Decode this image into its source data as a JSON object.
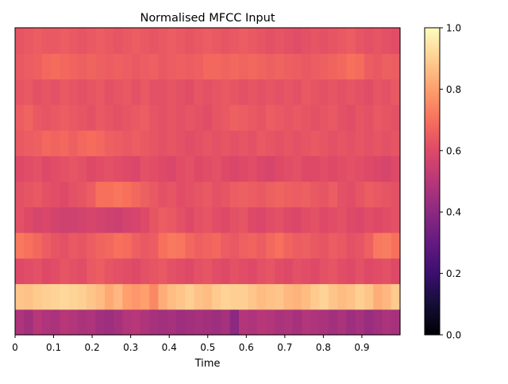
{
  "chart_data": {
    "type": "heatmap",
    "title": "Normalised MFCC Input",
    "xlabel": "Time",
    "ylabel": "",
    "colormap": "magma",
    "x_ticks": [
      "0",
      "0.1",
      "0.2",
      "0.3",
      "0.4",
      "0.5",
      "0.6",
      "0.7",
      "0.8",
      "0.9"
    ],
    "x_tick_values": [
      0,
      0.1,
      0.2,
      0.3,
      0.4,
      0.5,
      0.6,
      0.7,
      0.8,
      0.9
    ],
    "x_range": [
      0,
      0.999
    ],
    "n_rows": 12,
    "n_cols": 43,
    "rows_bottom_to_top": [
      [
        0.48,
        0.45,
        0.5,
        0.48,
        0.47,
        0.5,
        0.49,
        0.47,
        0.48,
        0.45,
        0.44,
        0.46,
        0.49,
        0.5,
        0.48,
        0.46,
        0.45,
        0.46,
        0.44,
        0.45,
        0.46,
        0.45,
        0.44,
        0.46,
        0.4,
        0.49,
        0.48,
        0.5,
        0.49,
        0.47,
        0.48,
        0.46,
        0.49,
        0.48,
        0.47,
        0.45,
        0.47,
        0.44,
        0.46,
        0.43,
        0.45,
        0.47,
        0.46
      ],
      [
        0.88,
        0.87,
        0.89,
        0.9,
        0.91,
        0.92,
        0.91,
        0.9,
        0.88,
        0.86,
        0.82,
        0.85,
        0.8,
        0.78,
        0.8,
        0.75,
        0.83,
        0.86,
        0.88,
        0.9,
        0.87,
        0.86,
        0.89,
        0.91,
        0.9,
        0.9,
        0.88,
        0.86,
        0.87,
        0.88,
        0.85,
        0.84,
        0.86,
        0.89,
        0.91,
        0.88,
        0.86,
        0.87,
        0.9,
        0.88,
        0.83,
        0.85,
        0.89
      ],
      [
        0.6,
        0.61,
        0.62,
        0.6,
        0.61,
        0.63,
        0.62,
        0.61,
        0.64,
        0.65,
        0.63,
        0.62,
        0.61,
        0.6,
        0.62,
        0.63,
        0.64,
        0.62,
        0.61,
        0.6,
        0.62,
        0.63,
        0.61,
        0.6,
        0.62,
        0.61,
        0.6,
        0.62,
        0.63,
        0.61,
        0.6,
        0.62,
        0.61,
        0.6,
        0.62,
        0.63,
        0.61,
        0.6,
        0.62,
        0.6,
        0.61,
        0.62,
        0.6
      ],
      [
        0.72,
        0.7,
        0.68,
        0.65,
        0.63,
        0.62,
        0.64,
        0.63,
        0.65,
        0.67,
        0.68,
        0.7,
        0.69,
        0.66,
        0.64,
        0.65,
        0.7,
        0.72,
        0.71,
        0.68,
        0.66,
        0.67,
        0.68,
        0.65,
        0.64,
        0.66,
        0.67,
        0.65,
        0.68,
        0.7,
        0.67,
        0.65,
        0.66,
        0.64,
        0.63,
        0.65,
        0.64,
        0.62,
        0.63,
        0.66,
        0.72,
        0.73,
        0.7
      ],
      [
        0.62,
        0.6,
        0.58,
        0.59,
        0.57,
        0.56,
        0.56,
        0.57,
        0.58,
        0.57,
        0.56,
        0.55,
        0.57,
        0.58,
        0.6,
        0.63,
        0.65,
        0.64,
        0.62,
        0.6,
        0.62,
        0.63,
        0.61,
        0.6,
        0.62,
        0.63,
        0.6,
        0.59,
        0.61,
        0.62,
        0.6,
        0.59,
        0.61,
        0.62,
        0.6,
        0.61,
        0.62,
        0.6,
        0.59,
        0.61,
        0.6,
        0.61,
        0.62
      ],
      [
        0.62,
        0.63,
        0.64,
        0.62,
        0.61,
        0.6,
        0.62,
        0.63,
        0.65,
        0.7,
        0.7,
        0.71,
        0.7,
        0.68,
        0.66,
        0.64,
        0.62,
        0.63,
        0.61,
        0.62,
        0.63,
        0.64,
        0.62,
        0.63,
        0.65,
        0.66,
        0.65,
        0.64,
        0.66,
        0.67,
        0.66,
        0.65,
        0.66,
        0.64,
        0.63,
        0.65,
        0.62,
        0.61,
        0.63,
        0.65,
        0.64,
        0.63,
        0.62
      ],
      [
        0.6,
        0.61,
        0.62,
        0.6,
        0.61,
        0.62,
        0.63,
        0.62,
        0.6,
        0.61,
        0.62,
        0.61,
        0.6,
        0.59,
        0.62,
        0.61,
        0.6,
        0.59,
        0.61,
        0.62,
        0.6,
        0.61,
        0.62,
        0.6,
        0.59,
        0.6,
        0.61,
        0.59,
        0.58,
        0.6,
        0.61,
        0.62,
        0.6,
        0.6,
        0.61,
        0.6,
        0.61,
        0.62,
        0.61,
        0.6,
        0.59,
        0.58,
        0.6
      ],
      [
        0.64,
        0.65,
        0.66,
        0.68,
        0.67,
        0.68,
        0.66,
        0.68,
        0.69,
        0.68,
        0.66,
        0.65,
        0.64,
        0.65,
        0.64,
        0.63,
        0.62,
        0.63,
        0.62,
        0.61,
        0.62,
        0.63,
        0.62,
        0.63,
        0.62,
        0.63,
        0.62,
        0.64,
        0.63,
        0.62,
        0.63,
        0.62,
        0.63,
        0.64,
        0.63,
        0.62,
        0.63,
        0.62,
        0.63,
        0.62,
        0.63,
        0.62,
        0.63
      ],
      [
        0.65,
        0.67,
        0.64,
        0.63,
        0.64,
        0.65,
        0.64,
        0.63,
        0.62,
        0.64,
        0.63,
        0.62,
        0.63,
        0.64,
        0.65,
        0.63,
        0.62,
        0.63,
        0.62,
        0.63,
        0.62,
        0.61,
        0.63,
        0.64,
        0.66,
        0.65,
        0.64,
        0.63,
        0.65,
        0.64,
        0.63,
        0.64,
        0.63,
        0.62,
        0.63,
        0.64,
        0.62,
        0.61,
        0.63,
        0.62,
        0.64,
        0.63,
        0.62
      ],
      [
        0.63,
        0.64,
        0.62,
        0.63,
        0.62,
        0.64,
        0.63,
        0.62,
        0.63,
        0.64,
        0.62,
        0.63,
        0.64,
        0.62,
        0.64,
        0.62,
        0.62,
        0.63,
        0.62,
        0.61,
        0.63,
        0.62,
        0.63,
        0.64,
        0.63,
        0.62,
        0.63,
        0.62,
        0.63,
        0.62,
        0.63,
        0.62,
        0.64,
        0.63,
        0.62,
        0.63,
        0.62,
        0.63,
        0.62,
        0.61,
        0.63,
        0.62,
        0.64
      ],
      [
        0.64,
        0.65,
        0.66,
        0.68,
        0.69,
        0.68,
        0.67,
        0.66,
        0.67,
        0.66,
        0.65,
        0.66,
        0.65,
        0.64,
        0.65,
        0.66,
        0.64,
        0.65,
        0.66,
        0.65,
        0.66,
        0.68,
        0.68,
        0.67,
        0.68,
        0.67,
        0.68,
        0.67,
        0.66,
        0.67,
        0.66,
        0.65,
        0.64,
        0.65,
        0.66,
        0.67,
        0.68,
        0.7,
        0.69,
        0.65,
        0.64,
        0.66,
        0.65
      ],
      [
        0.63,
        0.64,
        0.65,
        0.64,
        0.64,
        0.65,
        0.64,
        0.63,
        0.64,
        0.65,
        0.64,
        0.63,
        0.64,
        0.65,
        0.64,
        0.63,
        0.64,
        0.65,
        0.64,
        0.63,
        0.64,
        0.65,
        0.64,
        0.63,
        0.64,
        0.65,
        0.64,
        0.63,
        0.62,
        0.63,
        0.62,
        0.61,
        0.62,
        0.63,
        0.62,
        0.63,
        0.64,
        0.65,
        0.63,
        0.62,
        0.63,
        0.62,
        0.61
      ]
    ],
    "colorbar": {
      "range": [
        0,
        1
      ],
      "ticks": [
        "0.0",
        "0.2",
        "0.4",
        "0.6",
        "0.8",
        "1.0"
      ]
    }
  }
}
